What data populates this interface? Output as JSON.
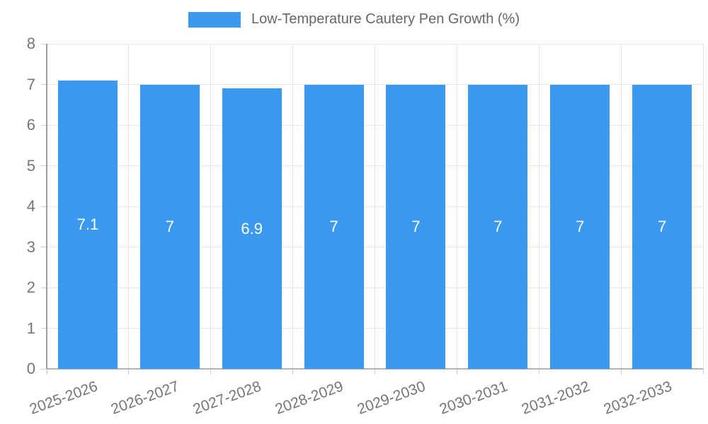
{
  "legend": {
    "label": "Low-Temperature Cautery Pen Growth (%)"
  },
  "colors": {
    "bar": "#3b9af0",
    "grid": "#e6e6e6",
    "tick_mark": "#cccccc",
    "y_axis_line": "#9e9e9e",
    "x_axis_line": "#b3b3b3",
    "tick_text": "#757575",
    "bar_label_text": "#ffffff",
    "legend_text": "#666666"
  },
  "chart_data": {
    "type": "bar",
    "title": "",
    "series_name": "Low-Temperature Cautery Pen Growth (%)",
    "categories": [
      "2025-2026",
      "2026-2027",
      "2027-2028",
      "2028-2029",
      "2029-2030",
      "2030-2031",
      "2031-2032",
      "2032-2033"
    ],
    "values": [
      7.1,
      7,
      6.9,
      7,
      7,
      7,
      7,
      7
    ],
    "bar_labels": [
      "7.1",
      "7",
      "6.9",
      "7",
      "7",
      "7",
      "7",
      "7"
    ],
    "xlabel": "",
    "ylabel": "",
    "ylim": [
      0,
      8
    ],
    "yticks": [
      0,
      1,
      2,
      3,
      4,
      5,
      6,
      7,
      8
    ],
    "grid": true,
    "legend_position": "top",
    "x_label_rotation_deg": -20
  }
}
